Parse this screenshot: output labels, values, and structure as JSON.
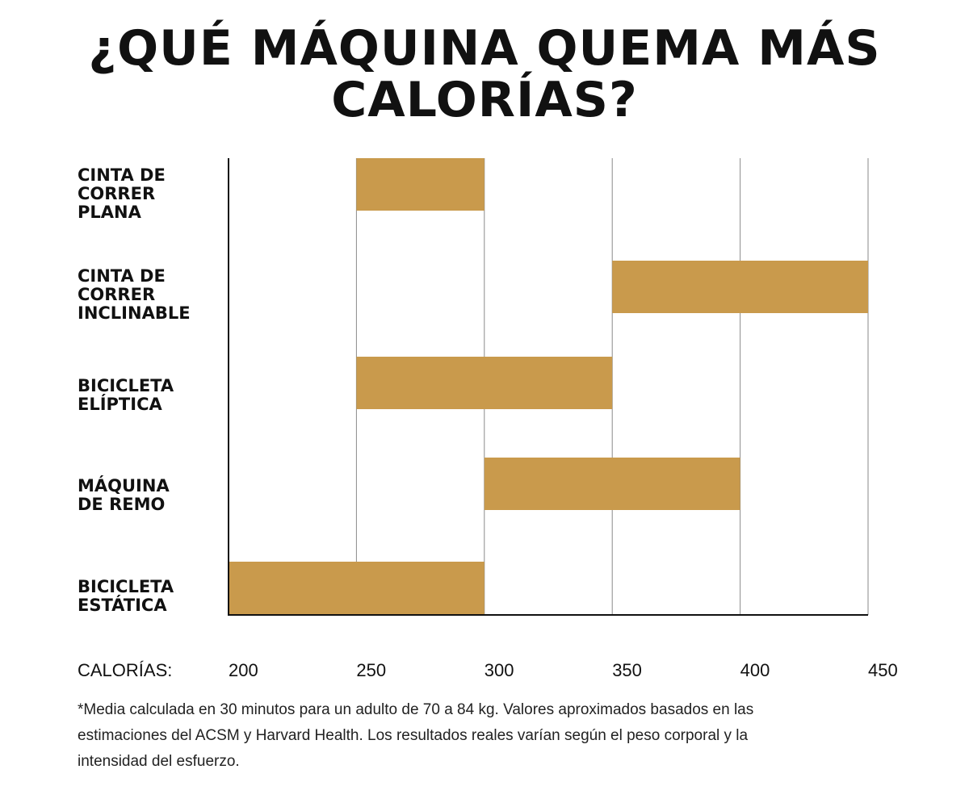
{
  "title_lines": [
    "¿QUÉ MÁQUINA QUEMA MÁS",
    "CALORÍAS?"
  ],
  "chart_data": {
    "type": "bar",
    "orientation": "horizontal-range",
    "title": "¿QUÉ MÁQUINA QUEMA MÁS CALORÍAS?",
    "xlabel": "CALORÍAS:",
    "xlim": [
      200,
      450
    ],
    "xticks": [
      200,
      250,
      300,
      350,
      400,
      450
    ],
    "grid": true,
    "bar_color": "#C99A4C",
    "categories": [
      {
        "name": "CINTA DE CORRER PLANA",
        "label_lines": [
          "CINTA DE",
          "CORRER",
          "PLANA"
        ],
        "min": 250,
        "max": 300
      },
      {
        "name": "CINTA DE CORRER INCLINABLE",
        "label_lines": [
          "CINTA DE",
          "CORRER",
          "INCLINABLE"
        ],
        "min": 350,
        "max": 450
      },
      {
        "name": "BICICLETA ELÍPTICA",
        "label_lines": [
          "BICICLETA",
          "ELÍPTICA"
        ],
        "min": 250,
        "max": 350
      },
      {
        "name": "MÁQUINA DE REMO",
        "label_lines": [
          "MÁQUINA",
          "DE REMO"
        ],
        "min": 300,
        "max": 400
      },
      {
        "name": "BICICLETA ESTÁTICA",
        "label_lines": [
          "BICICLETA",
          "ESTÁTICA"
        ],
        "min": 200,
        "max": 300
      }
    ]
  },
  "footnote_lines": [
    "*Media calculada en 30 minutos para un adulto de 70 a 84 kg. Valores aproximados basados en las",
    "estimaciones del ACSM y Harvard Health. Los resultados reales varían según el peso corporal y la",
    "intensidad del esfuerzo."
  ]
}
